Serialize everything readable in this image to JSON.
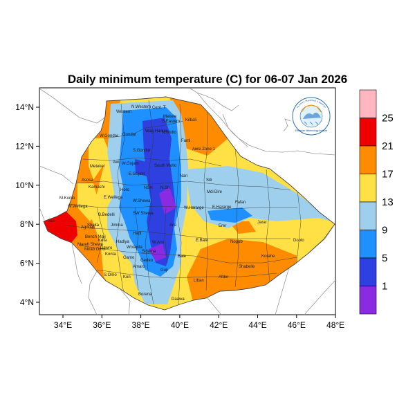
{
  "title": "Daily minimum temperature (C) for 06-07 Jan 2026",
  "lon_ticks": [
    "34°E",
    "36°E",
    "38°E",
    "40°E",
    "42°E",
    "44°E",
    "46°E",
    "48°E"
  ],
  "lat_ticks": [
    "14°N",
    "12°N",
    "10°N",
    "8°N",
    "6°N",
    "4°N"
  ],
  "colorbar": {
    "labels": [
      "25",
      "21",
      "17",
      "13",
      "9",
      "5",
      "1"
    ],
    "colors": [
      "#ffb6c1",
      "#ee0000",
      "#ff8c00",
      "#ffe045",
      "#9ed0ee",
      "#1e90ff",
      "#2f40e0",
      "#8a2be2"
    ]
  },
  "logo": {
    "top_text": "የኢትዮጵያ ሜቲዎሮሎጂ ኢንስቲትዩት",
    "bottom_text": "Ethiopian Meteorology Institute"
  },
  "zones": [
    "N.Western",
    "Cent. T",
    "Mekele",
    "S.Eastern",
    "Western",
    "Kilbali",
    "W.Gondar",
    "Gondar",
    "Wag Hamra",
    "N.Wollo",
    "Fanti",
    "Awsi Zone 1",
    "Metekel",
    "S.Gondar",
    "Awi",
    "W.Gojam",
    "South Wollo",
    "Asosa",
    "E.Gojam",
    "Nari",
    "Siti",
    "Kamashi",
    "Horo",
    "NSH",
    "N.Sh",
    "Fafan",
    "Mdi",
    "Dire",
    "M.Komo",
    "W.Wellega",
    "E.Wellega",
    "W.Shewa",
    "W.Hararge",
    "E.Hararge",
    "Jarar",
    "B.Bedelli",
    "SW Shewa",
    "Arsi",
    "Erer",
    "Agnuak",
    "Jimma",
    "Hadi",
    "W.Arsi",
    "E.Bale",
    "Nogob",
    "Doolo",
    "Kefa",
    "Hadiya",
    "Mareh Shewa",
    "Wolayita",
    "Sidama",
    "Bale",
    "Korahe",
    "Bench Maji",
    "Dawro",
    "Gamo",
    "Gedeo",
    "Shabelle",
    "Mirab Omo",
    "Konta",
    "Amaro",
    "Guji",
    "Afder",
    "Liban",
    "S.Omo",
    "Kon",
    "Borena",
    "Daawa",
    "Sheka",
    "Sur"
  ]
}
